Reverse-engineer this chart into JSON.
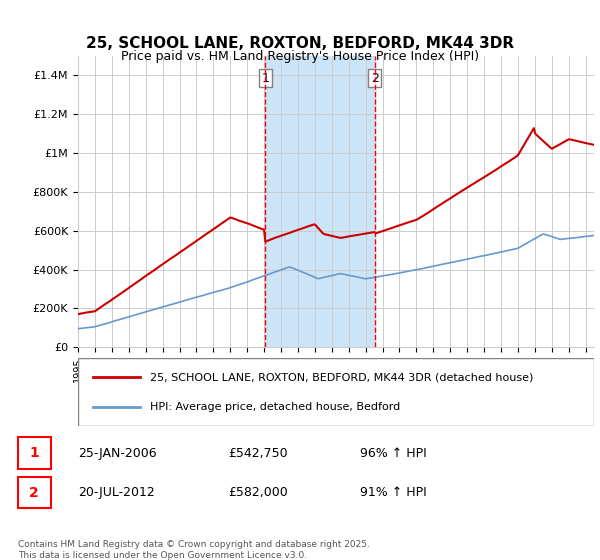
{
  "title": "25, SCHOOL LANE, ROXTON, BEDFORD, MK44 3DR",
  "subtitle": "Price paid vs. HM Land Registry's House Price Index (HPI)",
  "footer": "Contains HM Land Registry data © Crown copyright and database right 2025.\nThis data is licensed under the Open Government Licence v3.0.",
  "legend_line1": "25, SCHOOL LANE, ROXTON, BEDFORD, MK44 3DR (detached house)",
  "legend_line2": "HPI: Average price, detached house, Bedford",
  "transaction1_label": "1",
  "transaction1_date": "25-JAN-2006",
  "transaction1_price": "£542,750",
  "transaction1_hpi": "96% ↑ HPI",
  "transaction2_label": "2",
  "transaction2_date": "20-JUL-2012",
  "transaction2_price": "£582,000",
  "transaction2_hpi": "91% ↑ HPI",
  "vline1_x": 2006.07,
  "vline2_x": 2012.55,
  "shade_color": "#cce4f7",
  "property_color": "#cc0000",
  "hpi_color": "#6699cc",
  "ylim_min": 0,
  "ylim_max": 1500000,
  "xlim_min": 1995,
  "xlim_max": 2025.5,
  "background_color": "#ffffff",
  "grid_color": "#cccccc"
}
